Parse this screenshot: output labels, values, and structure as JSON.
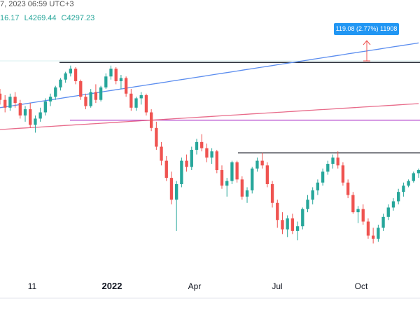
{
  "header": {
    "datetime_fragment": "7, 2023 06:59 UTC+3",
    "high_fragment": "16.17",
    "low": "L4269.44",
    "close": "C4297.23"
  },
  "measure": {
    "label": "119.08 (2.77%) 11908"
  },
  "colors": {
    "up": "#26a69a",
    "down": "#ef5350",
    "ma_fast": "#5b8def",
    "ma_slow": "#e86b8a",
    "level_magenta": "#b03cc9",
    "level_black": "#131722",
    "measure_bg": "#2196f3",
    "header_value": "#26a69a"
  },
  "chart_data": {
    "type": "candlestick",
    "x_ticks": [
      "11",
      "2022",
      "Apr",
      "Jul",
      "Oct"
    ],
    "y_range": [
      3500,
      4900
    ],
    "series": [
      {
        "kind": "ohlc",
        "values": [
          [
            4560,
            4590,
            4490,
            4520
          ],
          [
            4520,
            4550,
            4440,
            4470
          ],
          [
            4470,
            4560,
            4450,
            4540
          ],
          [
            4540,
            4570,
            4470,
            4500
          ],
          [
            4500,
            4520,
            4400,
            4420
          ],
          [
            4420,
            4480,
            4380,
            4460
          ],
          [
            4460,
            4500,
            4340,
            4360
          ],
          [
            4360,
            4420,
            4310,
            4400
          ],
          [
            4400,
            4470,
            4380,
            4440
          ],
          [
            4440,
            4530,
            4420,
            4510
          ],
          [
            4510,
            4560,
            4480,
            4540
          ],
          [
            4540,
            4610,
            4520,
            4600
          ],
          [
            4600,
            4660,
            4580,
            4650
          ],
          [
            4650,
            4700,
            4630,
            4690
          ],
          [
            4690,
            4740,
            4670,
            4720
          ],
          [
            4720,
            4730,
            4620,
            4640
          ],
          [
            4640,
            4650,
            4520,
            4540
          ],
          [
            4540,
            4560,
            4460,
            4480
          ],
          [
            4480,
            4590,
            4470,
            4570
          ],
          [
            4570,
            4620,
            4500,
            4520
          ],
          [
            4520,
            4610,
            4510,
            4600
          ],
          [
            4600,
            4690,
            4590,
            4670
          ],
          [
            4670,
            4740,
            4650,
            4720
          ],
          [
            4720,
            4730,
            4620,
            4640
          ],
          [
            4640,
            4680,
            4590,
            4660
          ],
          [
            4660,
            4670,
            4540,
            4560
          ],
          [
            4560,
            4590,
            4450,
            4470
          ],
          [
            4470,
            4540,
            4450,
            4530
          ],
          [
            4530,
            4570,
            4490,
            4550
          ],
          [
            4550,
            4560,
            4420,
            4440
          ],
          [
            4440,
            4460,
            4320,
            4340
          ],
          [
            4340,
            4380,
            4200,
            4220
          ],
          [
            4220,
            4250,
            4100,
            4130
          ],
          [
            4130,
            4160,
            4000,
            4020
          ],
          [
            4020,
            4060,
            3850,
            3880
          ],
          [
            3880,
            4000,
            3680,
            3980
          ],
          [
            3980,
            4150,
            3960,
            4130
          ],
          [
            4130,
            4170,
            4060,
            4090
          ],
          [
            4090,
            4220,
            4070,
            4200
          ],
          [
            4200,
            4270,
            4170,
            4250
          ],
          [
            4250,
            4300,
            4190,
            4210
          ],
          [
            4210,
            4240,
            4120,
            4150
          ],
          [
            4150,
            4210,
            4110,
            4190
          ],
          [
            4190,
            4200,
            4050,
            4070
          ],
          [
            4070,
            4100,
            3950,
            3970
          ],
          [
            3970,
            4020,
            3900,
            4000
          ],
          [
            4000,
            4130,
            3980,
            4120
          ],
          [
            4120,
            4130,
            3990,
            4010
          ],
          [
            4010,
            4030,
            3880,
            3900
          ],
          [
            3900,
            3960,
            3860,
            3940
          ],
          [
            3940,
            4090,
            3920,
            4080
          ],
          [
            4080,
            4150,
            4060,
            4130
          ],
          [
            4130,
            4180,
            4080,
            4100
          ],
          [
            4100,
            4120,
            3960,
            3980
          ],
          [
            3980,
            4000,
            3830,
            3860
          ],
          [
            3860,
            3880,
            3700,
            3750
          ],
          [
            3750,
            3800,
            3660,
            3690
          ],
          [
            3690,
            3780,
            3640,
            3760
          ],
          [
            3760,
            3790,
            3660,
            3680
          ],
          [
            3680,
            3740,
            3620,
            3710
          ],
          [
            3710,
            3830,
            3690,
            3820
          ],
          [
            3820,
            3910,
            3800,
            3880
          ],
          [
            3880,
            3960,
            3850,
            3940
          ],
          [
            3940,
            4010,
            3910,
            3990
          ],
          [
            3990,
            4080,
            3970,
            4060
          ],
          [
            4060,
            4130,
            4040,
            4110
          ],
          [
            4110,
            4170,
            4080,
            4150
          ],
          [
            4150,
            4190,
            4080,
            4100
          ],
          [
            4100,
            4120,
            3970,
            3990
          ],
          [
            3990,
            4010,
            3890,
            3910
          ],
          [
            3910,
            3930,
            3790,
            3800
          ],
          [
            3800,
            3840,
            3730,
            3820
          ],
          [
            3820,
            3850,
            3720,
            3740
          ],
          [
            3740,
            3760,
            3630,
            3650
          ],
          [
            3650,
            3700,
            3600,
            3630
          ],
          [
            3630,
            3720,
            3610,
            3700
          ],
          [
            3700,
            3790,
            3680,
            3770
          ],
          [
            3770,
            3850,
            3750,
            3830
          ],
          [
            3830,
            3890,
            3810,
            3870
          ],
          [
            3870,
            3950,
            3850,
            3930
          ],
          [
            3930,
            3990,
            3900,
            3970
          ],
          [
            3970,
            4010,
            3960,
            4000
          ],
          [
            4000,
            4060,
            3990,
            4050
          ],
          [
            4050,
            4080,
            4020,
            4070
          ]
        ]
      },
      {
        "kind": "sma_fast",
        "values": [
          4470,
          4475,
          4480,
          4485,
          4490,
          4495,
          4500,
          4505,
          4510,
          4515,
          4520,
          4525,
          4530,
          4535,
          4540,
          4545,
          4550,
          4555,
          4560,
          4565,
          4570,
          4575,
          4580,
          4585,
          4590,
          4595,
          4600,
          4605,
          4610,
          4615,
          4620,
          4625,
          4630,
          4635,
          4640,
          4645,
          4650,
          4655,
          4660,
          4665,
          4670,
          4675,
          4680,
          4685,
          4690,
          4695,
          4700,
          4705,
          4710,
          4715,
          4720,
          4725,
          4730,
          4735,
          4740,
          4745,
          4750,
          4755,
          4760,
          4765,
          4770,
          4775,
          4780,
          4785,
          4790,
          4795,
          4800,
          4805,
          4810,
          4815,
          4820,
          4825,
          4830,
          4835,
          4840,
          4845,
          4850,
          4855,
          4860,
          4865,
          4870,
          4875,
          4880,
          4885
        ]
      },
      {
        "kind": "sma_slow",
        "values": [
          4330,
          4332,
          4334,
          4336,
          4338,
          4340,
          4342,
          4344,
          4346,
          4348,
          4350,
          4352,
          4354,
          4356,
          4358,
          4360,
          4362,
          4364,
          4366,
          4368,
          4370,
          4372,
          4374,
          4376,
          4378,
          4380,
          4382,
          4384,
          4386,
          4388,
          4390,
          4392,
          4394,
          4396,
          4398,
          4400,
          4402,
          4404,
          4406,
          4408,
          4410,
          4412,
          4414,
          4416,
          4418,
          4420,
          4422,
          4424,
          4426,
          4428,
          4430,
          4432,
          4434,
          4436,
          4438,
          4440,
          4442,
          4444,
          4446,
          4448,
          4450,
          4452,
          4454,
          4456,
          4458,
          4460,
          4462,
          4464,
          4466,
          4468,
          4470,
          4472,
          4474,
          4476,
          4478,
          4480,
          4482,
          4484,
          4486,
          4488,
          4490,
          4492,
          4494,
          4496
        ]
      }
    ],
    "levels": [
      {
        "kind": "horizontal",
        "value": 4760,
        "color": "black"
      },
      {
        "kind": "horizontal",
        "value": 4390,
        "color": "magenta"
      },
      {
        "kind": "horizontal",
        "value": 4180,
        "color": "black"
      }
    ]
  }
}
